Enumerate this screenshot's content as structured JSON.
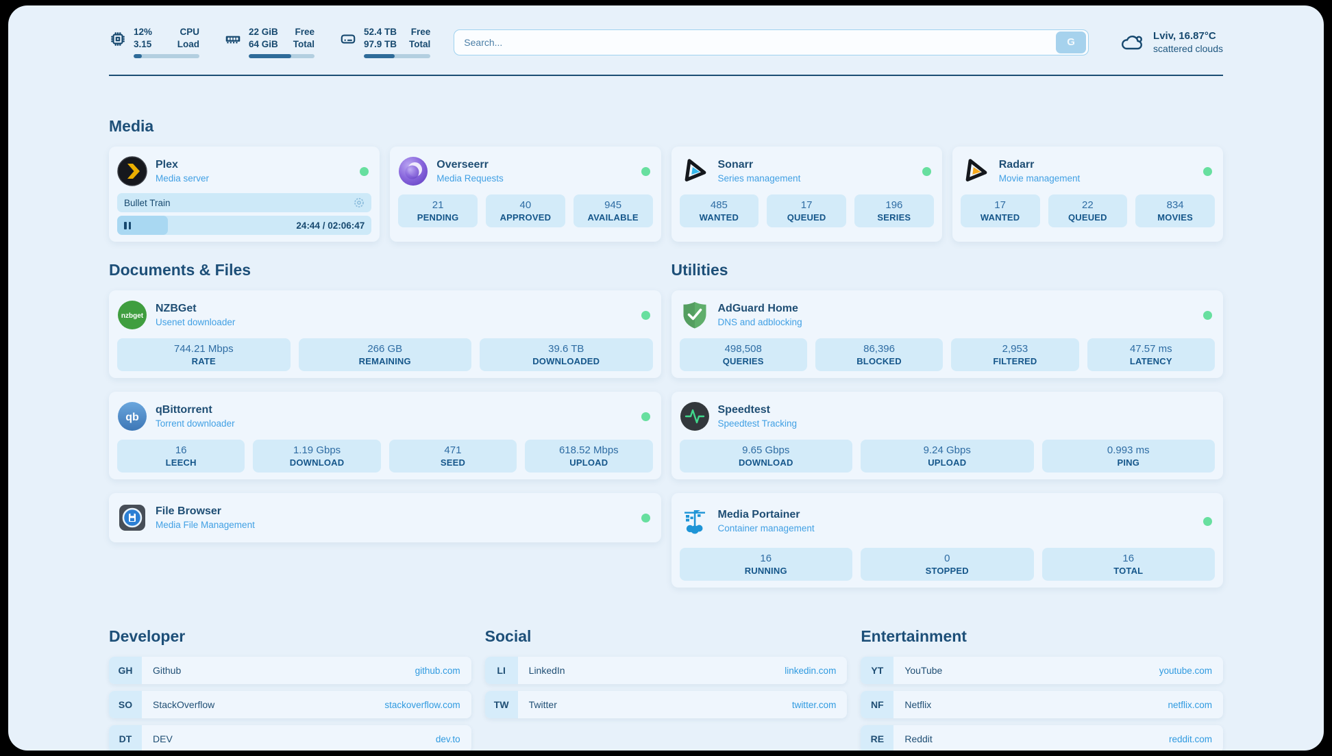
{
  "header": {
    "system_stats": [
      {
        "icon": "cpu-icon",
        "col1_top": "12%",
        "col1_bottom": "3.15",
        "col2_top": "CPU",
        "col2_bottom": "Load",
        "progress_pct": 12
      },
      {
        "icon": "ram-icon",
        "col1_top": "22 GiB",
        "col1_bottom": "64 GiB",
        "col2_top": "Free",
        "col2_bottom": "Total",
        "progress_pct": 65
      },
      {
        "icon": "disk-icon",
        "col1_top": "52.4 TB",
        "col1_bottom": "97.9 TB",
        "col2_top": "Free",
        "col2_bottom": "Total",
        "progress_pct": 46
      }
    ],
    "search": {
      "placeholder": "Search...",
      "button_label": "G"
    },
    "weather": {
      "icon": "cloud-icon",
      "location": "Lviv, 16.87°C",
      "condition": "scattered clouds"
    }
  },
  "media": {
    "title": "Media",
    "plex": {
      "icon": "plex-icon",
      "name": "Plex",
      "subtitle": "Media server",
      "status": "online",
      "now_playing": {
        "title": "Bullet Train",
        "time": "24:44 / 02:06:47",
        "progress_pct": 20
      }
    },
    "overseerr": {
      "icon": "overseerr-icon",
      "name": "Overseerr",
      "subtitle": "Media Requests",
      "status": "online",
      "stats": [
        {
          "value": "21",
          "label": "PENDING"
        },
        {
          "value": "40",
          "label": "APPROVED"
        },
        {
          "value": "945",
          "label": "AVAILABLE"
        }
      ]
    },
    "sonarr": {
      "icon": "sonarr-icon",
      "name": "Sonarr",
      "subtitle": "Series management",
      "status": "online",
      "stats": [
        {
          "value": "485",
          "label": "WANTED"
        },
        {
          "value": "17",
          "label": "QUEUED"
        },
        {
          "value": "196",
          "label": "SERIES"
        }
      ]
    },
    "radarr": {
      "icon": "radarr-icon",
      "name": "Radarr",
      "subtitle": "Movie management",
      "status": "online",
      "stats": [
        {
          "value": "17",
          "label": "WANTED"
        },
        {
          "value": "22",
          "label": "QUEUED"
        },
        {
          "value": "834",
          "label": "MOVIES"
        }
      ]
    }
  },
  "documents": {
    "title": "Documents & Files",
    "nzbget": {
      "icon": "nzbget-icon",
      "name": "NZBGet",
      "subtitle": "Usenet downloader",
      "status": "online",
      "stats": [
        {
          "value": "744.21 Mbps",
          "label": "RATE"
        },
        {
          "value": "266 GB",
          "label": "REMAINING"
        },
        {
          "value": "39.6 TB",
          "label": "DOWNLOADED"
        }
      ]
    },
    "qbittorrent": {
      "icon": "qbittorrent-icon",
      "name": "qBittorrent",
      "subtitle": "Torrent downloader",
      "status": "online",
      "stats": [
        {
          "value": "16",
          "label": "LEECH"
        },
        {
          "value": "1.19 Gbps",
          "label": "DOWNLOAD"
        },
        {
          "value": "471",
          "label": "SEED"
        },
        {
          "value": "618.52 Mbps",
          "label": "UPLOAD"
        }
      ]
    },
    "filebrowser": {
      "icon": "filebrowser-icon",
      "name": "File Browser",
      "subtitle": "Media File Management",
      "status": "online"
    }
  },
  "utilities": {
    "title": "Utilities",
    "adguard": {
      "icon": "adguard-icon",
      "name": "AdGuard Home",
      "subtitle": "DNS and adblocking",
      "status": "online",
      "stats": [
        {
          "value": "498,508",
          "label": "QUERIES"
        },
        {
          "value": "86,396",
          "label": "BLOCKED"
        },
        {
          "value": "2,953",
          "label": "FILTERED"
        },
        {
          "value": "47.57 ms",
          "label": "LATENCY"
        }
      ]
    },
    "speedtest": {
      "icon": "speedtest-icon",
      "name": "Speedtest",
      "subtitle": "Speedtest Tracking",
      "status": "none",
      "stats": [
        {
          "value": "9.65 Gbps",
          "label": "DOWNLOAD"
        },
        {
          "value": "9.24 Gbps",
          "label": "UPLOAD"
        },
        {
          "value": "0.993 ms",
          "label": "PING"
        }
      ]
    },
    "portainer": {
      "icon": "portainer-icon",
      "name": "Media Portainer",
      "subtitle": "Container management",
      "status": "online",
      "stats": [
        {
          "value": "16",
          "label": "RUNNING"
        },
        {
          "value": "0",
          "label": "STOPPED"
        },
        {
          "value": "16",
          "label": "TOTAL"
        }
      ]
    }
  },
  "links": {
    "developer": {
      "title": "Developer",
      "items": [
        {
          "abbr": "GH",
          "name": "Github",
          "url": "github.com"
        },
        {
          "abbr": "SO",
          "name": "StackOverflow",
          "url": "stackoverflow.com"
        },
        {
          "abbr": "DT",
          "name": "DEV",
          "url": "dev.to"
        }
      ]
    },
    "social": {
      "title": "Social",
      "items": [
        {
          "abbr": "LI",
          "name": "LinkedIn",
          "url": "linkedin.com"
        },
        {
          "abbr": "TW",
          "name": "Twitter",
          "url": "twitter.com"
        }
      ]
    },
    "entertainment": {
      "title": "Entertainment",
      "items": [
        {
          "abbr": "YT",
          "name": "YouTube",
          "url": "youtube.com"
        },
        {
          "abbr": "NF",
          "name": "Netflix",
          "url": "netflix.com"
        },
        {
          "abbr": "RE",
          "name": "Reddit",
          "url": "reddit.com"
        }
      ]
    }
  },
  "colors": {
    "page_bg": "#e7f1fa",
    "card_bg": "#eff6fd",
    "tile_bg": "#d3ebf9",
    "heading": "#1d4f78",
    "subtitle": "#41a0e4",
    "link": "#2f9ae0",
    "status_online": "#67df9f",
    "progress_fill": "#2e6b99",
    "divider": "#1b4e73"
  }
}
